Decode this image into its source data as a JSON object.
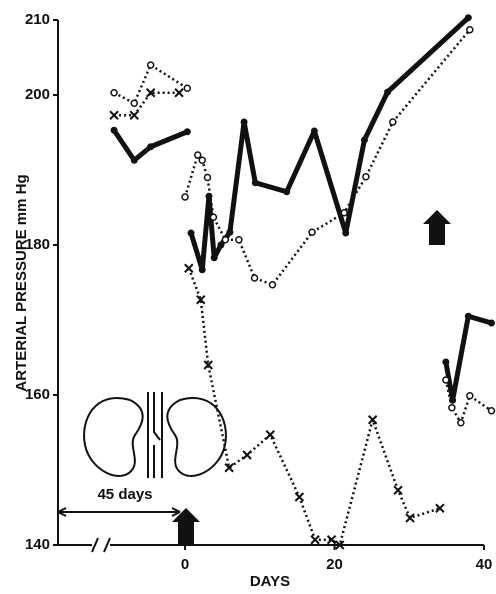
{
  "chart_data": {
    "type": "line",
    "y_label": "ARTERIAL PRESSURE mm Hg",
    "x_label": "DAYS",
    "annotation": "45 days",
    "xlim": [
      -17,
      40
    ],
    "ylim": [
      140,
      210
    ],
    "xticks": [
      0,
      20,
      40
    ],
    "yticks": [
      140,
      160,
      180,
      200,
      210
    ],
    "color": "#111",
    "series": [
      {
        "style": "solid",
        "marker": "dot",
        "x": [
          -9.5,
          -6.8,
          -4.6,
          0.3,
          null,
          0.8,
          2.3,
          3.2,
          3.9,
          4.8,
          6,
          7.9,
          9.4,
          13.6,
          17.3,
          21.5,
          24,
          27.1,
          37.9,
          null,
          34.9,
          35.8,
          37.9,
          41
        ],
        "values": [
          195.3,
          191.3,
          193.1,
          195.1,
          null,
          181.6,
          176.7,
          186.5,
          178.3,
          180,
          181.7,
          196.4,
          188.3,
          187.1,
          195.2,
          181.6,
          194,
          200.4,
          210.3,
          null,
          164.4,
          159.3,
          170.5,
          169.6
        ]
      },
      {
        "style": "dotted",
        "marker": "circle",
        "x": [
          -9.5,
          -6.8,
          -4.6,
          0.3,
          null,
          0,
          1.7,
          2.3,
          3,
          3.8,
          5.4,
          7.2,
          9.3,
          11.7,
          17,
          21.3,
          24.2,
          27.8,
          38.1,
          null,
          34.9,
          35.7,
          36.9,
          38.1,
          41
        ],
        "values": [
          200.3,
          198.9,
          204,
          200.9,
          null,
          186.4,
          192,
          191.3,
          189,
          183.7,
          180.7,
          180.7,
          175.6,
          174.7,
          181.7,
          184.3,
          189.1,
          196.4,
          208.7,
          null,
          162,
          158.3,
          156.3,
          159.9,
          157.9
        ]
      },
      {
        "style": "dotted",
        "marker": "x",
        "x": [
          -9.5,
          -6.8,
          -4.6,
          -0.8,
          null,
          0.5,
          2.1,
          3.1,
          5.9,
          8.3,
          11.4,
          15.3,
          17.4,
          19.6,
          20.7,
          25.1,
          28.5,
          30.1,
          34.1
        ],
        "values": [
          197.3,
          197.3,
          200.3,
          200.3,
          null,
          176.9,
          172.7,
          164,
          150.3,
          152,
          154.7,
          146.4,
          140.7,
          140.7,
          140,
          156.7,
          147.3,
          143.6,
          144.9
        ]
      }
    ]
  }
}
